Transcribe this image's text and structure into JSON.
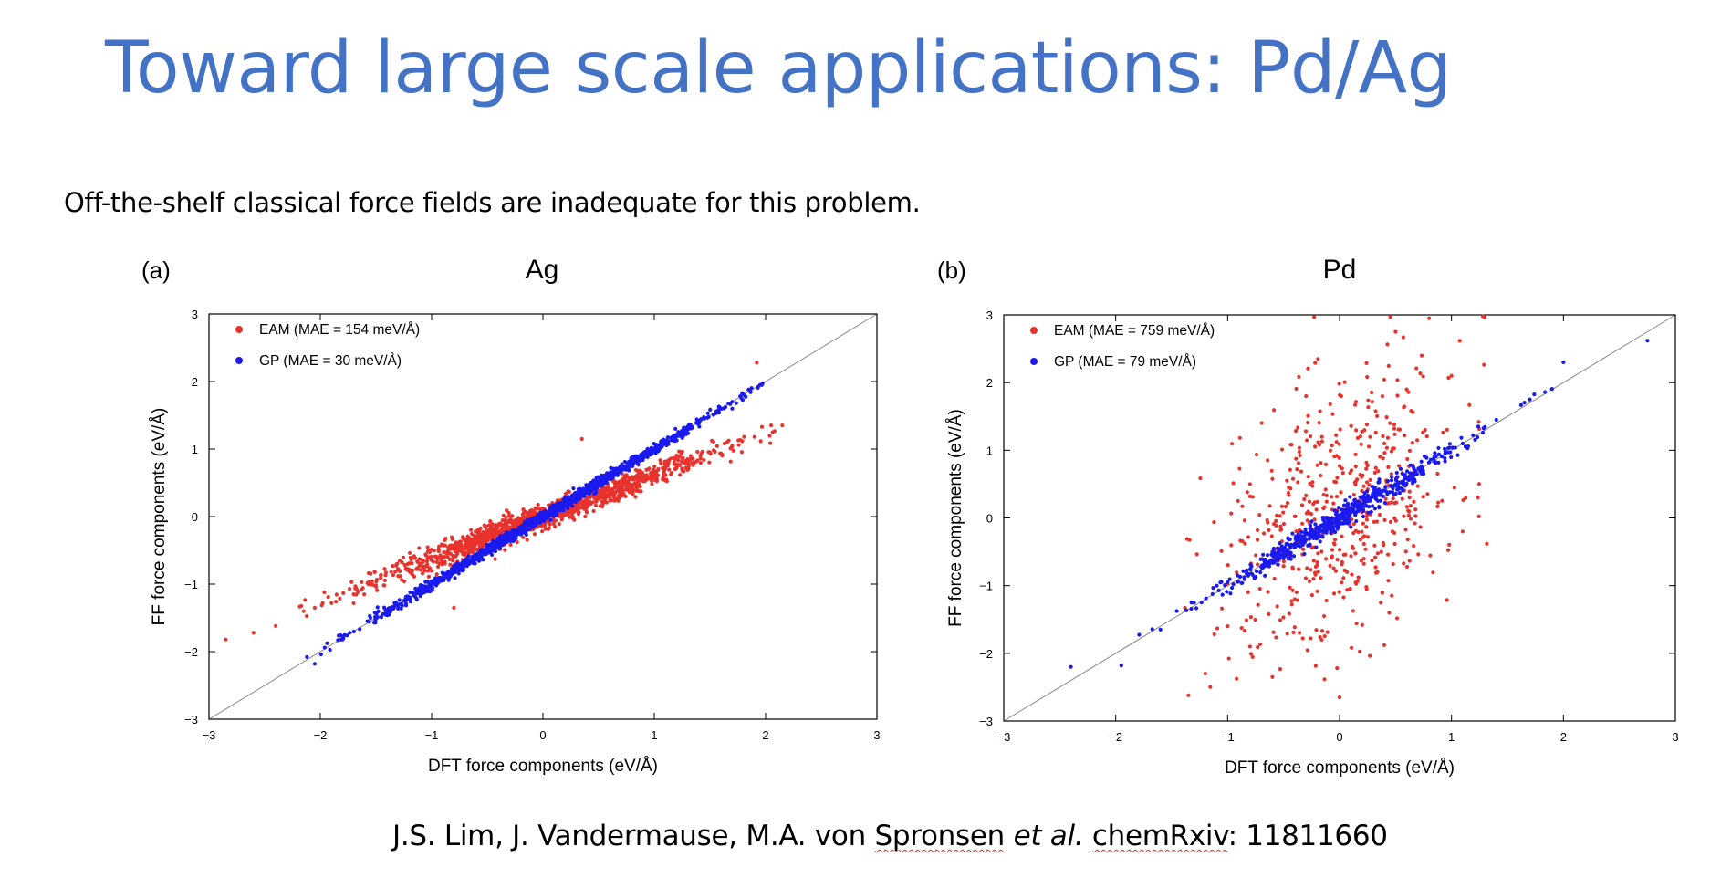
{
  "slide": {
    "title": "Toward large scale applications: Pd/Ag",
    "subtitle": "Off-the-shelf classical force fields are inadequate for this problem.",
    "citation_authors": "J.S. Lim, J. Vandermause, M.A. von ",
    "citation_name": "Spronsen",
    "citation_etal": "et al.",
    "citation_journal": "chemRxiv",
    "citation_id": ": 11811660"
  },
  "colors": {
    "title": "#4472c4",
    "eam": "#e8322d",
    "gp": "#1a1aee",
    "diagonal": "#888888"
  },
  "chart_data": [
    {
      "type": "scatter",
      "panel_label": "(a)",
      "title": "Ag",
      "xlabel": "DFT force components (eV/Å)",
      "ylabel": "FF force components (eV/Å)",
      "xlim": [
        -3,
        3
      ],
      "ylim": [
        -3,
        3
      ],
      "xticks": [
        -3,
        -2,
        -1,
        0,
        1,
        2,
        3
      ],
      "yticks": [
        -3,
        -2,
        -1,
        0,
        1,
        2,
        3
      ],
      "grid": false,
      "legend_position": "top-left",
      "reference_line": "y = x",
      "series": [
        {
          "name": "EAM (MAE = 154 meV/Å)",
          "color": "#e8322d",
          "pattern": "y ≈ 0.62x, dense",
          "points": [
            [
              -2.85,
              -1.82
            ],
            [
              -2.6,
              -1.72
            ],
            [
              -2.4,
              -1.62
            ],
            [
              -2.15,
              -1.4
            ],
            [
              -2.05,
              -1.35
            ],
            [
              -1.9,
              -1.28
            ],
            [
              -1.7,
              -1.15
            ],
            [
              -1.5,
              -1.02
            ],
            [
              -1.3,
              -0.88
            ],
            [
              -1.1,
              -0.72
            ],
            [
              -0.9,
              -0.6
            ],
            [
              -0.7,
              -0.46
            ],
            [
              -0.5,
              -0.33
            ],
            [
              -0.3,
              -0.2
            ],
            [
              -0.1,
              -0.06
            ],
            [
              0.1,
              0.06
            ],
            [
              0.3,
              0.18
            ],
            [
              0.5,
              0.3
            ],
            [
              0.7,
              0.45
            ],
            [
              0.9,
              0.58
            ],
            [
              1.1,
              0.72
            ],
            [
              1.3,
              0.85
            ],
            [
              1.5,
              0.95
            ],
            [
              1.7,
              1.05
            ],
            [
              1.9,
              1.18
            ],
            [
              2.05,
              1.35
            ],
            [
              2.15,
              1.35
            ],
            [
              1.92,
              2.28
            ],
            [
              0.35,
              1.15
            ],
            [
              -0.8,
              -1.35
            ]
          ]
        },
        {
          "name": "GP (MAE = 30 meV/Å)",
          "color": "#1a1aee",
          "pattern": "y ≈ x, tight",
          "points": [
            [
              -2.12,
              -2.08
            ],
            [
              -2.05,
              -2.18
            ],
            [
              -1.8,
              -1.82
            ],
            [
              -1.55,
              -1.5
            ],
            [
              -1.3,
              -1.32
            ],
            [
              -1.05,
              -1.05
            ],
            [
              -0.8,
              -0.78
            ],
            [
              -0.55,
              -0.56
            ],
            [
              -0.3,
              -0.3
            ],
            [
              -0.05,
              -0.05
            ],
            [
              0.2,
              0.2
            ],
            [
              0.45,
              0.45
            ],
            [
              0.7,
              0.7
            ],
            [
              0.95,
              0.95
            ],
            [
              1.2,
              1.2
            ],
            [
              1.45,
              1.45
            ],
            [
              1.7,
              1.7
            ],
            [
              1.95,
              1.95
            ]
          ]
        }
      ]
    },
    {
      "type": "scatter",
      "panel_label": "(b)",
      "title": "Pd",
      "xlabel": "DFT force components (eV/Å)",
      "ylabel": "FF force components (eV/Å)",
      "xlim": [
        -3,
        3
      ],
      "ylim": [
        -3,
        3
      ],
      "xticks": [
        -3,
        -2,
        -1,
        0,
        1,
        2,
        3
      ],
      "yticks": [
        -3,
        -2,
        -1,
        0,
        1,
        2,
        3
      ],
      "grid": false,
      "legend_position": "top-left",
      "reference_line": "y = x",
      "series": [
        {
          "name": "EAM (MAE = 759 meV/Å)",
          "color": "#e8322d",
          "pattern": "broad scatter, x in [-1.4, 1.3]",
          "points": [
            [
              -1.35,
              -2.62
            ],
            [
              -1.2,
              -2.3
            ],
            [
              -1.0,
              -1.6
            ],
            [
              -0.8,
              -1.9
            ],
            [
              -0.6,
              -2.35
            ],
            [
              -0.4,
              -1.2
            ],
            [
              -0.2,
              -0.7
            ],
            [
              0.0,
              -2.65
            ],
            [
              0.2,
              0.4
            ],
            [
              0.4,
              1.1
            ],
            [
              0.6,
              1.9
            ],
            [
              0.8,
              2.95
            ],
            [
              1.0,
              2.1
            ],
            [
              1.28,
              2.98
            ],
            [
              0.5,
              2.75
            ],
            [
              -0.3,
              1.8
            ],
            [
              -0.8,
              0.5
            ],
            [
              1.1,
              -0.2
            ]
          ]
        },
        {
          "name": "GP (MAE = 79 meV/Å)",
          "color": "#1a1aee",
          "pattern": "y ≈ x",
          "points": [
            [
              -2.4,
              -2.2
            ],
            [
              -1.95,
              -2.18
            ],
            [
              -1.6,
              -1.65
            ],
            [
              -1.3,
              -1.25
            ],
            [
              -1.0,
              -0.95
            ],
            [
              -0.7,
              -0.72
            ],
            [
              -0.4,
              -0.38
            ],
            [
              -0.1,
              -0.1
            ],
            [
              0.2,
              0.2
            ],
            [
              0.5,
              0.5
            ],
            [
              0.8,
              0.82
            ],
            [
              1.1,
              1.1
            ],
            [
              1.4,
              1.45
            ],
            [
              1.7,
              1.75
            ],
            [
              2.0,
              2.3
            ],
            [
              2.75,
              2.62
            ]
          ]
        }
      ]
    }
  ]
}
